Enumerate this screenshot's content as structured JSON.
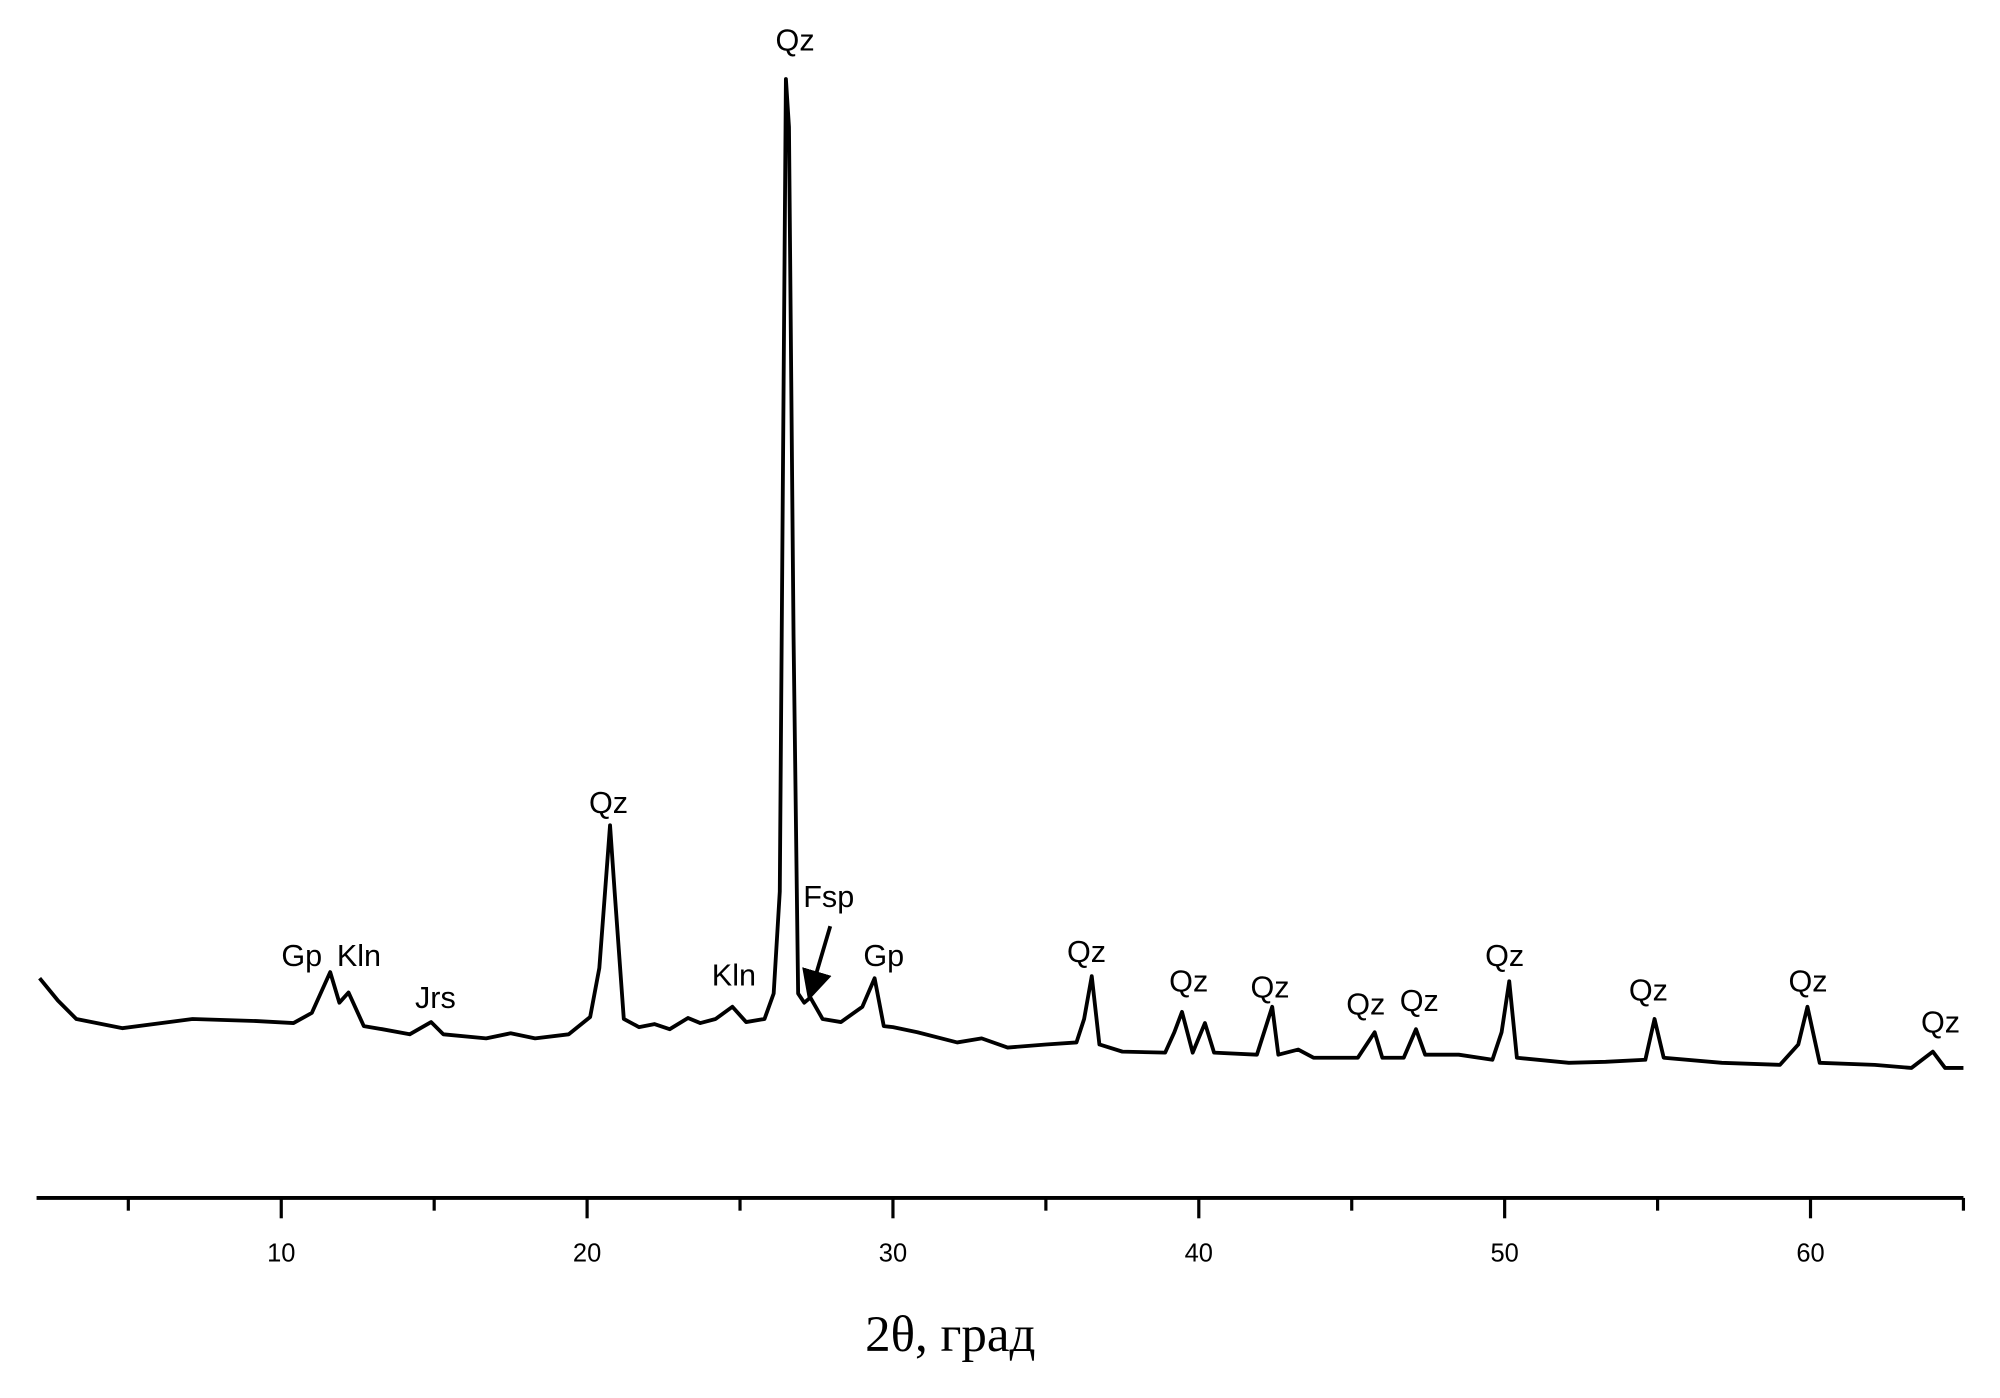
{
  "chart_data": {
    "type": "line",
    "x_label": "2θ, град",
    "xlim": [
      2,
      65
    ],
    "xticks": [
      10,
      20,
      30,
      40,
      50,
      60
    ],
    "minor_xticks": [
      5,
      15,
      25,
      35,
      45,
      55,
      65
    ],
    "ylim": [
      0,
      105
    ],
    "color": "#000000",
    "x": [
      2.1,
      2.7,
      3.3,
      4.8,
      7.1,
      9.2,
      10.4,
      11.0,
      11.6,
      11.9,
      12.2,
      12.7,
      13.3,
      14.2,
      14.9,
      15.3,
      16.7,
      17.5,
      18.3,
      19.4,
      20.1,
      20.4,
      20.75,
      20.9,
      21.2,
      21.7,
      22.2,
      22.7,
      23.3,
      23.7,
      24.2,
      24.75,
      25.2,
      25.8,
      26.1,
      26.3,
      26.5,
      26.6,
      26.75,
      26.9,
      27.1,
      27.3,
      27.7,
      28.3,
      29.0,
      29.4,
      29.7,
      30.0,
      30.8,
      32.1,
      32.9,
      33.75,
      35.0,
      36.0,
      36.25,
      36.5,
      36.75,
      37.5,
      38.9,
      39.2,
      39.45,
      39.8,
      40.2,
      40.5,
      41.9,
      42.4,
      42.6,
      43.25,
      43.75,
      45.2,
      45.75,
      46.0,
      46.7,
      47.1,
      47.4,
      48.5,
      49.6,
      49.9,
      50.15,
      50.4,
      52.1,
      53.3,
      54.6,
      54.9,
      55.2,
      57.1,
      59.0,
      59.6,
      59.9,
      60.3,
      62.1,
      63.3,
      64.0,
      64.4,
      65.0
    ],
    "values": [
      10.3,
      8.1,
      6.3,
      5.4,
      6.3,
      6.1,
      5.9,
      6.9,
      10.9,
      7.9,
      8.9,
      5.6,
      5.3,
      4.8,
      6.0,
      4.8,
      4.4,
      4.9,
      4.4,
      4.8,
      6.5,
      11.3,
      25.3,
      18.8,
      6.3,
      5.5,
      5.8,
      5.3,
      6.4,
      5.9,
      6.3,
      7.5,
      6.0,
      6.3,
      8.8,
      18.8,
      98.5,
      93.8,
      43.8,
      8.8,
      7.9,
      8.4,
      6.3,
      6.0,
      7.5,
      10.3,
      5.6,
      5.5,
      5.0,
      4.0,
      4.4,
      3.5,
      3.8,
      4.0,
      6.3,
      10.5,
      3.8,
      3.1,
      3.0,
      5.0,
      7.0,
      3.0,
      5.9,
      3.0,
      2.8,
      7.5,
      2.8,
      3.3,
      2.5,
      2.5,
      5.0,
      2.5,
      2.5,
      5.3,
      2.8,
      2.8,
      2.3,
      5.0,
      10.0,
      2.5,
      2.0,
      2.1,
      2.3,
      6.3,
      2.5,
      2.0,
      1.8,
      3.8,
      7.5,
      2.0,
      1.8,
      1.5,
      3.1,
      1.5,
      1.5
    ],
    "annotations": [
      {
        "text": "Gp",
        "x": 10.67,
        "y": 12.5
      },
      {
        "text": "Kln",
        "x": 12.54,
        "y": 12.5
      },
      {
        "text": "Jrs",
        "x": 15.04,
        "y": 8.4
      },
      {
        "text": "Qz",
        "x": 20.7,
        "y": 27.5
      },
      {
        "text": "Kln",
        "x": 24.8,
        "y": 10.6
      },
      {
        "text": "Qz",
        "x": 26.8,
        "y": 102.3
      },
      {
        "text": "Fsp",
        "x": 27.9,
        "y": 18.3,
        "arrow_from": [
          27.95,
          15.4
        ],
        "arrow_to": [
          27.3,
          8.8
        ]
      },
      {
        "text": "Gp",
        "x": 29.7,
        "y": 12.5
      },
      {
        "text": "Qz",
        "x": 36.33,
        "y": 12.9
      },
      {
        "text": "Qz",
        "x": 39.67,
        "y": 10
      },
      {
        "text": "Qz",
        "x": 42.33,
        "y": 9.4
      },
      {
        "text": "Qz",
        "x": 45.46,
        "y": 7.75
      },
      {
        "text": "Qz",
        "x": 47.21,
        "y": 8.1
      },
      {
        "text": "Qz",
        "x": 50.0,
        "y": 12.5
      },
      {
        "text": "Qz",
        "x": 54.7,
        "y": 9.1
      },
      {
        "text": "Qz",
        "x": 59.92,
        "y": 10
      },
      {
        "text": "Qz",
        "x": 64.25,
        "y": 6
      }
    ]
  }
}
